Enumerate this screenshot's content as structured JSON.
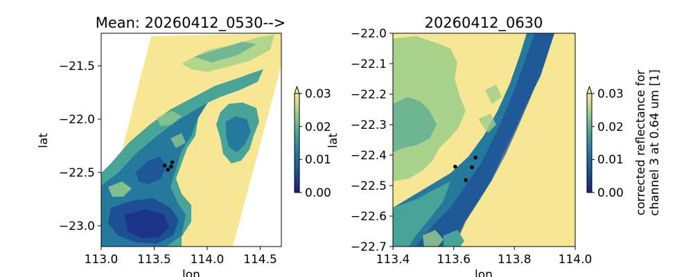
{
  "chart_data": [
    {
      "type": "heatmap",
      "title": "Mean: 20260412_0530-->",
      "xlabel": "lon",
      "ylabel": "lat",
      "xlim": [
        113.0,
        114.7
      ],
      "ylim": [
        -23.2,
        -21.2
      ],
      "xticks": [
        113.0,
        113.5,
        114.0,
        114.5
      ],
      "xtick_labels": [
        "113.0",
        "113.5",
        "114.0",
        "114.5"
      ],
      "yticks": [
        -21.5,
        -22.0,
        -22.5,
        -23.0
      ],
      "ytick_labels": [
        "−21.5",
        "−22.0",
        "−22.5",
        "−23.0"
      ],
      "points": [
        {
          "lon": 113.6,
          "lat": -22.44
        },
        {
          "lon": 113.67,
          "lat": -22.41
        },
        {
          "lon": 113.66,
          "lat": -22.45
        },
        {
          "lon": 113.63,
          "lat": -22.48
        }
      ],
      "colorbar": {
        "vmin": 0.0,
        "vmax": 0.03,
        "extend": "max",
        "ticks": [
          0.0,
          0.01,
          0.02,
          0.03
        ],
        "tick_labels": [
          "0.00",
          "0.01",
          "0.02",
          "0.03"
        ],
        "label": ""
      }
    },
    {
      "type": "heatmap",
      "title": "20260412_0630",
      "xlabel": "lon",
      "ylabel": "lat",
      "xlim": [
        113.4,
        114.0
      ],
      "ylim": [
        -22.7,
        -22.0
      ],
      "xticks": [
        113.4,
        113.6,
        113.8,
        114.0
      ],
      "xtick_labels": [
        "113.4",
        "113.6",
        "113.8",
        "114.0"
      ],
      "yticks": [
        -22.0,
        -22.1,
        -22.2,
        -22.3,
        -22.4,
        -22.5,
        -22.6,
        -22.7
      ],
      "ytick_labels": [
        "−22.0",
        "−22.1",
        "−22.2",
        "−22.3",
        "−22.4",
        "−22.5",
        "−22.6",
        "−22.7"
      ],
      "points": [
        {
          "lon": 113.605,
          "lat": -22.438
        },
        {
          "lon": 113.672,
          "lat": -22.408
        },
        {
          "lon": 113.66,
          "lat": -22.44
        },
        {
          "lon": 113.64,
          "lat": -22.482
        }
      ],
      "colorbar": {
        "vmin": 0.0,
        "vmax": 0.03,
        "extend": "max",
        "ticks": [
          0.0,
          0.01,
          0.02,
          0.03
        ],
        "tick_labels": [
          "0.00",
          "0.01",
          "0.02",
          "0.03"
        ],
        "label_lines": [
          "corrected reflectance for",
          "channel 3 at 0.64 um [1]"
        ]
      }
    }
  ],
  "colors": {
    "colormap": [
      "#1c1f7c",
      "#1d4f95",
      "#25799d",
      "#48a398",
      "#9bcf8a",
      "#f7e795"
    ],
    "marker": "#000000"
  }
}
